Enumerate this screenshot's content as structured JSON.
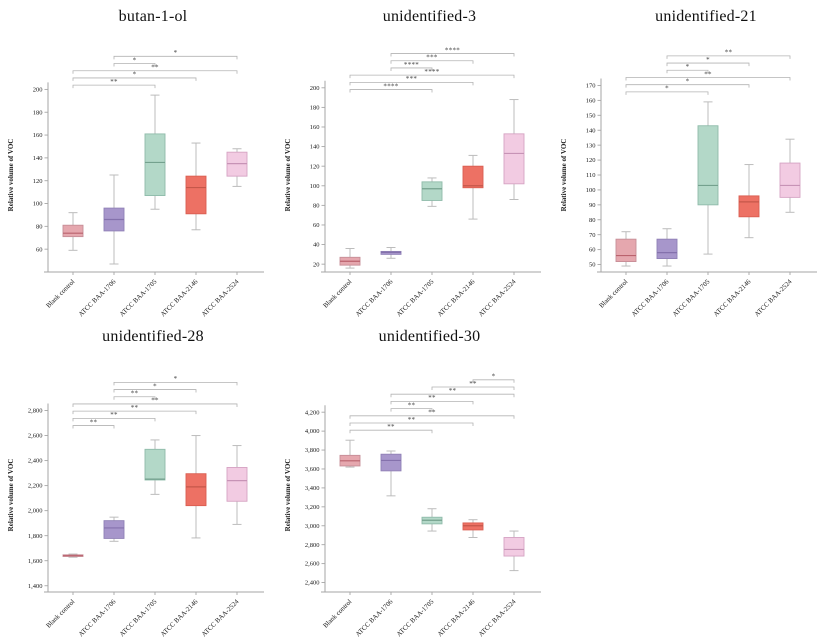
{
  "style": {
    "background": "#ffffff",
    "axis_color": "#a6a6a6",
    "tick_text_color": "#1a1a1a",
    "whisker_color": "#bcbcbc",
    "bracket_color": "#b3b3b3",
    "sig_text_color": "#3c3c3c",
    "title_color": "#111111"
  },
  "palette": [
    {
      "name": "rose",
      "fill": "#E5A7AE",
      "stroke": "#C68E97",
      "median": "#BA626D"
    },
    {
      "name": "purple",
      "fill": "#A796CB",
      "stroke": "#9080B6",
      "median": "#8471AC"
    },
    {
      "name": "teal",
      "fill": "#B3D8C8",
      "stroke": "#8FBBAA",
      "median": "#74A18E"
    },
    {
      "name": "salmon",
      "fill": "#ED7164",
      "stroke": "#DA5E51",
      "median": "#C5574A"
    },
    {
      "name": "pink",
      "fill": "#F2CBE2",
      "stroke": "#D5A3C3",
      "median": "#C793B6"
    }
  ],
  "chart_data": [
    {
      "type": "box",
      "title": "butan-1-ol",
      "ylabel": "Relative volume of VOC",
      "categories": [
        "Blank control",
        "ATCC BAA-1706",
        "ATCC BAA-1705",
        "ATCC BAA-2146",
        "ATCC BAA-2524"
      ],
      "ylim": [
        40,
        210
      ],
      "yticks": [
        {
          "v": 60,
          "label": "60"
        },
        {
          "v": 80,
          "label": "80"
        },
        {
          "v": 100,
          "label": "100"
        },
        {
          "v": 120,
          "label": "120"
        },
        {
          "v": 140,
          "label": "140"
        },
        {
          "v": 160,
          "label": "160"
        },
        {
          "v": 180,
          "label": "180"
        },
        {
          "v": 200,
          "label": "200"
        }
      ],
      "boxes": [
        {
          "low": 59,
          "q1": 71,
          "median": 74,
          "q3": 81,
          "high": 92
        },
        {
          "low": 47,
          "q1": 76,
          "median": 86,
          "q3": 96,
          "high": 125
        },
        {
          "low": 95,
          "q1": 107,
          "median": 136,
          "q3": 161,
          "high": 195
        },
        {
          "low": 77,
          "q1": 91,
          "median": 114,
          "q3": 124,
          "high": 153
        },
        {
          "low": 115,
          "q1": 124,
          "median": 135,
          "q3": 145,
          "high": 148
        }
      ],
      "brackets": [
        {
          "from": 1,
          "to": 4,
          "label": "*"
        },
        {
          "from": 1,
          "to": 2,
          "label": "*"
        },
        {
          "from": 0,
          "to": 4,
          "label": "**"
        },
        {
          "from": 0,
          "to": 3,
          "label": "*"
        },
        {
          "from": 0,
          "to": 2,
          "label": "**"
        }
      ]
    },
    {
      "type": "box",
      "title": "unidentified-3",
      "ylabel": "Relative volume of VOC",
      "categories": [
        "Blank control",
        "ATCC BAA-1706",
        "ATCC BAA-1705",
        "ATCC BAA-2146",
        "ATCC BAA-2524"
      ],
      "ylim": [
        12,
        210
      ],
      "yticks": [
        {
          "v": 20,
          "label": "20"
        },
        {
          "v": 40,
          "label": "40"
        },
        {
          "v": 60,
          "label": "60"
        },
        {
          "v": 80,
          "label": "80"
        },
        {
          "v": 100,
          "label": "100"
        },
        {
          "v": 120,
          "label": "120"
        },
        {
          "v": 140,
          "label": "140"
        },
        {
          "v": 160,
          "label": "160"
        },
        {
          "v": 180,
          "label": "180"
        },
        {
          "v": 200,
          "label": "200"
        }
      ],
      "boxes": [
        {
          "low": 16,
          "q1": 19,
          "median": 23,
          "q3": 27,
          "high": 36
        },
        {
          "low": 26,
          "q1": 30,
          "median": 32,
          "q3": 33,
          "high": 37
        },
        {
          "low": 79,
          "q1": 85,
          "median": 97,
          "q3": 104,
          "high": 108
        },
        {
          "low": 66,
          "q1": 98,
          "median": 100,
          "q3": 120,
          "high": 131
        },
        {
          "low": 86,
          "q1": 102,
          "median": 133,
          "q3": 153,
          "high": 188
        }
      ],
      "brackets": [
        {
          "from": 1,
          "to": 4,
          "label": "****"
        },
        {
          "from": 1,
          "to": 3,
          "label": "***"
        },
        {
          "from": 1,
          "to": 2,
          "label": "****"
        },
        {
          "from": 0,
          "to": 4,
          "label": "****"
        },
        {
          "from": 0,
          "to": 3,
          "label": "***"
        },
        {
          "from": 0,
          "to": 2,
          "label": "****"
        }
      ]
    },
    {
      "type": "box",
      "title": "unidentified-21",
      "ylabel": "Relative volume of VOC",
      "categories": [
        "Blank control",
        "ATCC BAA-1706",
        "ATCC BAA-1705",
        "ATCC BAA-2146",
        "ATCC BAA-2524"
      ],
      "ylim": [
        45,
        175
      ],
      "yticks": [
        {
          "v": 50,
          "label": "50"
        },
        {
          "v": 60,
          "label": "60"
        },
        {
          "v": 70,
          "label": "70"
        },
        {
          "v": 80,
          "label": "80"
        },
        {
          "v": 90,
          "label": "90"
        },
        {
          "v": 100,
          "label": "100"
        },
        {
          "v": 110,
          "label": "110"
        },
        {
          "v": 120,
          "label": "120"
        },
        {
          "v": 130,
          "label": "130"
        },
        {
          "v": 140,
          "label": "140"
        },
        {
          "v": 150,
          "label": "150"
        },
        {
          "v": 160,
          "label": "160"
        },
        {
          "v": 170,
          "label": "170"
        }
      ],
      "boxes": [
        {
          "low": 49,
          "q1": 52,
          "median": 56,
          "q3": 67,
          "high": 72
        },
        {
          "low": 49,
          "q1": 54,
          "median": 58,
          "q3": 67,
          "high": 74
        },
        {
          "low": 57,
          "q1": 90,
          "median": 103,
          "q3": 143,
          "high": 159
        },
        {
          "low": 68,
          "q1": 82,
          "median": 92,
          "q3": 96,
          "high": 117
        },
        {
          "low": 85,
          "q1": 95,
          "median": 103,
          "q3": 118,
          "high": 134
        }
      ],
      "brackets": [
        {
          "from": 1,
          "to": 4,
          "label": "**"
        },
        {
          "from": 1,
          "to": 3,
          "label": "*"
        },
        {
          "from": 1,
          "to": 2,
          "label": "*"
        },
        {
          "from": 0,
          "to": 4,
          "label": "**"
        },
        {
          "from": 0,
          "to": 3,
          "label": "*"
        },
        {
          "from": 0,
          "to": 2,
          "label": "*"
        }
      ]
    },
    {
      "type": "box",
      "title": "unidentified-28",
      "ylabel": "Relative volume of VOC",
      "categories": [
        "Blank control",
        "ATCC BAA-1706",
        "ATCC BAA-1705",
        "ATCC BAA-2146",
        "ATCC BAA-2524"
      ],
      "ylim": [
        1350,
        2900
      ],
      "yticks": [
        {
          "v": 1400,
          "label": "1,400"
        },
        {
          "v": 1600,
          "label": "1,600"
        },
        {
          "v": 1800,
          "label": "1,800"
        },
        {
          "v": 2000,
          "label": "2,000"
        },
        {
          "v": 2200,
          "label": "2,200"
        },
        {
          "v": 2400,
          "label": "2,400"
        },
        {
          "v": 2600,
          "label": "2,600"
        },
        {
          "v": 2800,
          "label": "2,800"
        }
      ],
      "boxes": [
        {
          "low": 1628,
          "q1": 1634,
          "median": 1640,
          "q3": 1647,
          "high": 1653
        },
        {
          "low": 1755,
          "q1": 1778,
          "median": 1862,
          "q3": 1920,
          "high": 1948
        },
        {
          "low": 2130,
          "q1": 2245,
          "median": 2252,
          "q3": 2490,
          "high": 2565
        },
        {
          "low": 1782,
          "q1": 2040,
          "median": 2190,
          "q3": 2295,
          "high": 2600
        },
        {
          "low": 1890,
          "q1": 2075,
          "median": 2240,
          "q3": 2345,
          "high": 2520
        }
      ],
      "brackets": [
        {
          "from": 1,
          "to": 4,
          "label": "*"
        },
        {
          "from": 1,
          "to": 3,
          "label": "*"
        },
        {
          "from": 1,
          "to": 2,
          "label": "**"
        },
        {
          "from": 0,
          "to": 4,
          "label": "**"
        },
        {
          "from": 0,
          "to": 3,
          "label": "**"
        },
        {
          "from": 0,
          "to": 2,
          "label": "**"
        },
        {
          "from": 0,
          "to": 1,
          "label": "**"
        }
      ]
    },
    {
      "type": "box",
      "title": "unidentified-30",
      "ylabel": "Relative volume of VOC",
      "categories": [
        "Blank control",
        "ATCC BAA-1706",
        "ATCC BAA-1705",
        "ATCC BAA-2146",
        "ATCC BAA-2524"
      ],
      "ylim": [
        2300,
        4350
      ],
      "yticks": [
        {
          "v": 2400,
          "label": "2,400"
        },
        {
          "v": 2600,
          "label": "2,600"
        },
        {
          "v": 2800,
          "label": "2,800"
        },
        {
          "v": 3000,
          "label": "3,000"
        },
        {
          "v": 3200,
          "label": "3,200"
        },
        {
          "v": 3400,
          "label": "3,400"
        },
        {
          "v": 3600,
          "label": "3,600"
        },
        {
          "v": 3800,
          "label": "3,800"
        },
        {
          "v": 4000,
          "label": "4,000"
        },
        {
          "v": 4200,
          "label": "4,200"
        }
      ],
      "boxes": [
        {
          "low": 3620,
          "q1": 3632,
          "median": 3686,
          "q3": 3744,
          "high": 3904
        },
        {
          "low": 3316,
          "q1": 3580,
          "median": 3690,
          "q3": 3756,
          "high": 3790
        },
        {
          "low": 2944,
          "q1": 3020,
          "median": 3058,
          "q3": 3090,
          "high": 3180
        },
        {
          "low": 2876,
          "q1": 2956,
          "median": 3000,
          "q3": 3030,
          "high": 3064
        },
        {
          "low": 2526,
          "q1": 2680,
          "median": 2750,
          "q3": 2876,
          "high": 2944
        }
      ],
      "brackets": [
        {
          "from": 3,
          "to": 4,
          "label": "*"
        },
        {
          "from": 2,
          "to": 4,
          "label": "**"
        },
        {
          "from": 1,
          "to": 4,
          "label": "**"
        },
        {
          "from": 1,
          "to": 3,
          "label": "**"
        },
        {
          "from": 1,
          "to": 2,
          "label": "**"
        },
        {
          "from": 0,
          "to": 4,
          "label": "**"
        },
        {
          "from": 0,
          "to": 3,
          "label": "**"
        },
        {
          "from": 0,
          "to": 2,
          "label": "**"
        }
      ]
    }
  ]
}
